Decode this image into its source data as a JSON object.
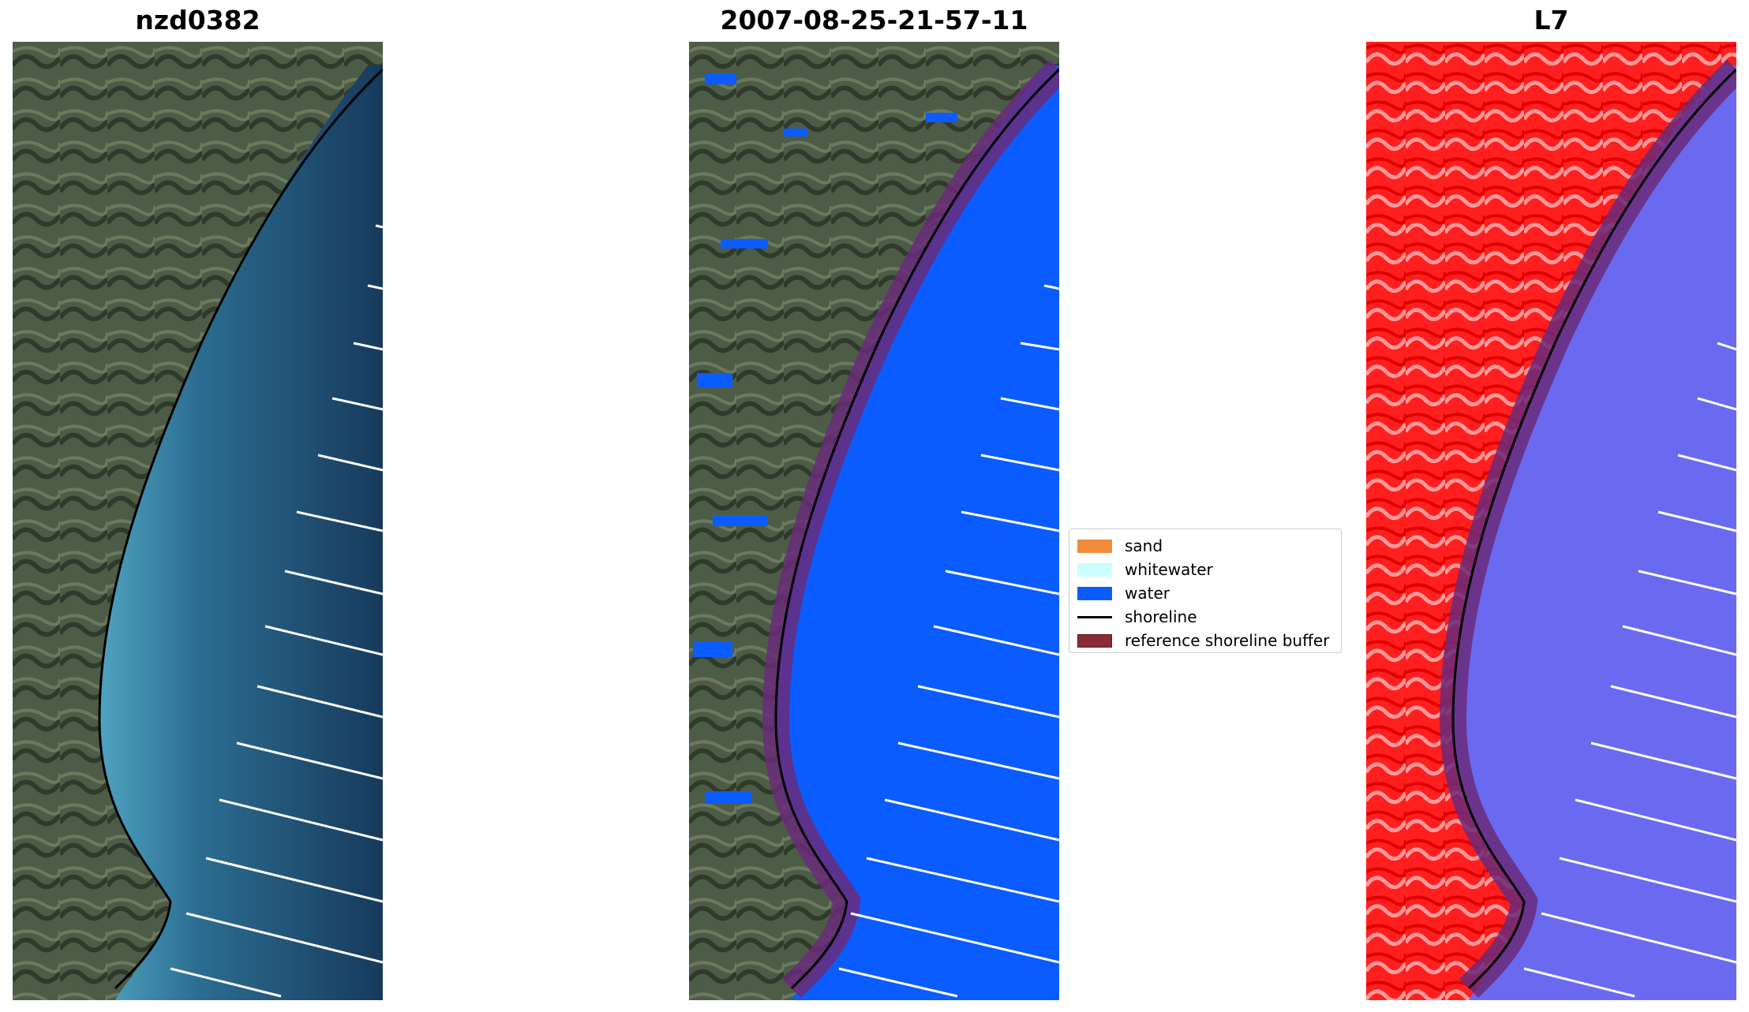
{
  "panels": [
    {
      "title": "nzd0382",
      "kind": "rgb"
    },
    {
      "title": "2007-08-25-21-57-11",
      "kind": "classified"
    },
    {
      "title": "L7",
      "kind": "index"
    }
  ],
  "legend": {
    "items": [
      {
        "label": "sand",
        "color": "#f28b3a",
        "type": "patch"
      },
      {
        "label": "whitewater",
        "color": "#ccffff",
        "type": "patch"
      },
      {
        "label": "water",
        "color": "#0a5cff",
        "type": "patch"
      },
      {
        "label": "shoreline",
        "color": "#000000",
        "type": "line"
      },
      {
        "label": "reference shoreline buffer",
        "color": "#8b2c34",
        "type": "patch"
      }
    ]
  },
  "colors": {
    "land": "#4a5a45",
    "sea_rgb": "#1f4a6e",
    "sea_near_shore": "#3f8fae",
    "water_class": "#0a5cff",
    "buffer": "#6a2a7a",
    "index_land": "#ff2020",
    "index_water": "#6a6af0"
  }
}
